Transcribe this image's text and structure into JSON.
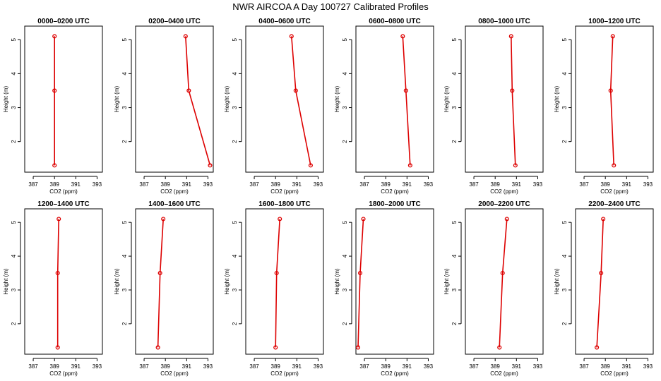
{
  "figure_title": "NWR AIRCOA A  Day 100727  Calibrated Profiles",
  "colors": {
    "series": "#dd0000",
    "axis": "#000000",
    "background": "#ffffff"
  },
  "chart_data": [
    {
      "type": "line",
      "title": "0000–0200 UTC",
      "xlabel": "CO2 (ppm)",
      "ylabel": "Height (m)",
      "xlim": [
        386.2,
        393.5
      ],
      "ylim": [
        1.1,
        5.4
      ],
      "xticks": [
        387,
        389,
        391,
        393
      ],
      "yticks": [
        2,
        3,
        4,
        5
      ],
      "x": [
        389.0,
        389.0,
        389.0
      ],
      "y": [
        1.3,
        3.5,
        5.1
      ]
    },
    {
      "type": "line",
      "title": "0200–0400 UTC",
      "xlabel": "CO2 (ppm)",
      "ylabel": "Height (m)",
      "xlim": [
        386.2,
        393.5
      ],
      "ylim": [
        1.1,
        5.4
      ],
      "xticks": [
        387,
        389,
        391,
        393
      ],
      "yticks": [
        2,
        3,
        4,
        5
      ],
      "x": [
        393.2,
        391.2,
        390.9
      ],
      "y": [
        1.3,
        3.5,
        5.1
      ]
    },
    {
      "type": "line",
      "title": "0400–0600 UTC",
      "xlabel": "CO2 (ppm)",
      "ylabel": "Height (m)",
      "xlim": [
        386.2,
        393.5
      ],
      "ylim": [
        1.1,
        5.4
      ],
      "xticks": [
        387,
        389,
        391,
        393
      ],
      "yticks": [
        2,
        3,
        4,
        5
      ],
      "x": [
        392.3,
        390.9,
        390.5
      ],
      "y": [
        1.3,
        3.5,
        5.1
      ]
    },
    {
      "type": "line",
      "title": "0600–0800 UTC",
      "xlabel": "CO2 (ppm)",
      "ylabel": "Height (m)",
      "xlim": [
        386.2,
        393.5
      ],
      "ylim": [
        1.1,
        5.4
      ],
      "xticks": [
        387,
        389,
        391,
        393
      ],
      "yticks": [
        2,
        3,
        4,
        5
      ],
      "x": [
        391.3,
        390.9,
        390.6
      ],
      "y": [
        1.3,
        3.5,
        5.1
      ]
    },
    {
      "type": "line",
      "title": "0800–1000 UTC",
      "xlabel": "CO2 (ppm)",
      "ylabel": "Height (m)",
      "xlim": [
        386.2,
        393.5
      ],
      "ylim": [
        1.1,
        5.4
      ],
      "xticks": [
        387,
        389,
        391,
        393
      ],
      "yticks": [
        2,
        3,
        4,
        5
      ],
      "x": [
        390.9,
        390.6,
        390.5
      ],
      "y": [
        1.3,
        3.5,
        5.1
      ]
    },
    {
      "type": "line",
      "title": "1000–1200 UTC",
      "xlabel": "CO2 (ppm)",
      "ylabel": "Height (m)",
      "xlim": [
        386.2,
        393.5
      ],
      "ylim": [
        1.1,
        5.4
      ],
      "xticks": [
        387,
        389,
        391,
        393
      ],
      "yticks": [
        2,
        3,
        4,
        5
      ],
      "x": [
        389.8,
        389.5,
        389.7
      ],
      "y": [
        1.3,
        3.5,
        5.1
      ]
    },
    {
      "type": "line",
      "title": "1200–1400 UTC",
      "xlabel": "CO2 (ppm)",
      "ylabel": "Height (m)",
      "xlim": [
        386.2,
        393.5
      ],
      "ylim": [
        1.1,
        5.4
      ],
      "xticks": [
        387,
        389,
        391,
        393
      ],
      "yticks": [
        2,
        3,
        4,
        5
      ],
      "x": [
        389.3,
        389.3,
        389.4
      ],
      "y": [
        1.3,
        3.5,
        5.1
      ]
    },
    {
      "type": "line",
      "title": "1400–1600 UTC",
      "xlabel": "CO2 (ppm)",
      "ylabel": "Height (m)",
      "xlim": [
        386.2,
        393.5
      ],
      "ylim": [
        1.1,
        5.4
      ],
      "xticks": [
        387,
        389,
        391,
        393
      ],
      "yticks": [
        2,
        3,
        4,
        5
      ],
      "x": [
        388.3,
        388.5,
        388.8
      ],
      "y": [
        1.3,
        3.5,
        5.1
      ]
    },
    {
      "type": "line",
      "title": "1600–1800 UTC",
      "xlabel": "CO2 (ppm)",
      "ylabel": "Height (m)",
      "xlim": [
        386.2,
        393.5
      ],
      "ylim": [
        1.1,
        5.4
      ],
      "xticks": [
        387,
        389,
        391,
        393
      ],
      "yticks": [
        2,
        3,
        4,
        5
      ],
      "x": [
        389.0,
        389.1,
        389.4
      ],
      "y": [
        1.3,
        3.5,
        5.1
      ]
    },
    {
      "type": "line",
      "title": "1800–2000 UTC",
      "xlabel": "CO2 (ppm)",
      "ylabel": "Height (m)",
      "xlim": [
        386.2,
        393.5
      ],
      "ylim": [
        1.1,
        5.4
      ],
      "xticks": [
        387,
        389,
        391,
        393
      ],
      "yticks": [
        2,
        3,
        4,
        5
      ],
      "x": [
        386.4,
        386.6,
        386.9
      ],
      "y": [
        1.3,
        3.5,
        5.1
      ]
    },
    {
      "type": "line",
      "title": "2000–2200 UTC",
      "xlabel": "CO2 (ppm)",
      "ylabel": "Height (m)",
      "xlim": [
        386.2,
        393.5
      ],
      "ylim": [
        1.1,
        5.4
      ],
      "xticks": [
        387,
        389,
        391,
        393
      ],
      "yticks": [
        2,
        3,
        4,
        5
      ],
      "x": [
        389.4,
        389.7,
        390.1
      ],
      "y": [
        1.3,
        3.5,
        5.1
      ]
    },
    {
      "type": "line",
      "title": "2200–2400 UTC",
      "xlabel": "CO2 (ppm)",
      "ylabel": "Height (m)",
      "xlim": [
        386.2,
        393.5
      ],
      "ylim": [
        1.1,
        5.4
      ],
      "xticks": [
        387,
        389,
        391,
        393
      ],
      "yticks": [
        2,
        3,
        4,
        5
      ],
      "x": [
        388.2,
        388.6,
        388.8
      ],
      "y": [
        1.3,
        3.5,
        5.1
      ]
    }
  ]
}
